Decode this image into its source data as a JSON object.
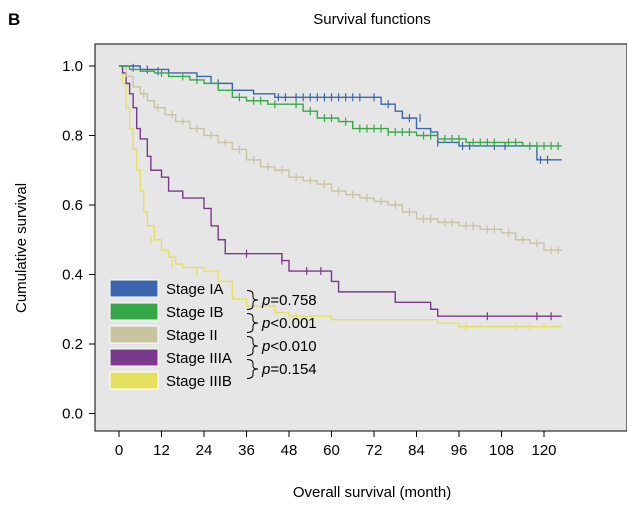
{
  "panel_label": "B",
  "chart_data": {
    "type": "line",
    "title": "Survival functions",
    "xlabel": "Overall survival (month)",
    "ylabel": "Cumulative survival",
    "xlim": [
      0,
      125
    ],
    "ylim": [
      -0.05,
      1.06
    ],
    "xticks": [
      0,
      12,
      24,
      36,
      48,
      60,
      72,
      84,
      96,
      108,
      120
    ],
    "yticks": [
      0.0,
      0.2,
      0.4,
      0.6,
      0.8,
      1.0
    ],
    "ytick_labels": [
      "0.0",
      "0.2",
      "0.4",
      "0.6",
      "0.8",
      "1.0"
    ],
    "plot_background": "#e6e6e6",
    "grid": false,
    "legend_position": "bottom-left",
    "series": [
      {
        "name": "Stage IA",
        "color": "#3a66b0",
        "step": [
          [
            0,
            1.0
          ],
          [
            6,
            0.99
          ],
          [
            14,
            0.98
          ],
          [
            22,
            0.97
          ],
          [
            26,
            0.95
          ],
          [
            32,
            0.93
          ],
          [
            38,
            0.92
          ],
          [
            44,
            0.91
          ],
          [
            58,
            0.91
          ],
          [
            70,
            0.91
          ],
          [
            74,
            0.89
          ],
          [
            78,
            0.87
          ],
          [
            80,
            0.85
          ],
          [
            84,
            0.82
          ],
          [
            88,
            0.81
          ],
          [
            90,
            0.78
          ],
          [
            96,
            0.77
          ],
          [
            108,
            0.77
          ],
          [
            118,
            0.73
          ],
          [
            125,
            0.73
          ]
        ],
        "censor_marks": [
          [
            4,
            0.995
          ],
          [
            8,
            0.99
          ],
          [
            11,
            0.985
          ],
          [
            28,
            0.95
          ],
          [
            45,
            0.91
          ],
          [
            47,
            0.91
          ],
          [
            50,
            0.91
          ],
          [
            52,
            0.91
          ],
          [
            54,
            0.91
          ],
          [
            56,
            0.91
          ],
          [
            58,
            0.91
          ],
          [
            60,
            0.91
          ],
          [
            62,
            0.91
          ],
          [
            64,
            0.91
          ],
          [
            66,
            0.91
          ],
          [
            68,
            0.91
          ],
          [
            72,
            0.91
          ],
          [
            76,
            0.89
          ],
          [
            82,
            0.85
          ],
          [
            85,
            0.85
          ],
          [
            90,
            0.78
          ],
          [
            97,
            0.77
          ],
          [
            99,
            0.77
          ],
          [
            106,
            0.77
          ],
          [
            109,
            0.77
          ],
          [
            119,
            0.73
          ],
          [
            121,
            0.73
          ]
        ]
      },
      {
        "name": "Stage IB",
        "color": "#35a84a",
        "step": [
          [
            0,
            1.0
          ],
          [
            3,
            0.99
          ],
          [
            6,
            0.985
          ],
          [
            10,
            0.98
          ],
          [
            14,
            0.97
          ],
          [
            20,
            0.96
          ],
          [
            24,
            0.95
          ],
          [
            28,
            0.93
          ],
          [
            32,
            0.91
          ],
          [
            36,
            0.9
          ],
          [
            42,
            0.89
          ],
          [
            48,
            0.89
          ],
          [
            52,
            0.87
          ],
          [
            56,
            0.85
          ],
          [
            62,
            0.84
          ],
          [
            66,
            0.82
          ],
          [
            70,
            0.82
          ],
          [
            76,
            0.81
          ],
          [
            84,
            0.8
          ],
          [
            90,
            0.79
          ],
          [
            98,
            0.78
          ],
          [
            108,
            0.78
          ],
          [
            114,
            0.77
          ],
          [
            125,
            0.77
          ]
        ],
        "censor_marks": [
          [
            12,
            0.98
          ],
          [
            18,
            0.97
          ],
          [
            22,
            0.96
          ],
          [
            34,
            0.91
          ],
          [
            38,
            0.9
          ],
          [
            40,
            0.9
          ],
          [
            44,
            0.89
          ],
          [
            50,
            0.89
          ],
          [
            54,
            0.87
          ],
          [
            58,
            0.85
          ],
          [
            60,
            0.85
          ],
          [
            64,
            0.84
          ],
          [
            68,
            0.82
          ],
          [
            70,
            0.82
          ],
          [
            72,
            0.82
          ],
          [
            74,
            0.82
          ],
          [
            76,
            0.81
          ],
          [
            78,
            0.81
          ],
          [
            80,
            0.81
          ],
          [
            82,
            0.81
          ],
          [
            86,
            0.8
          ],
          [
            88,
            0.8
          ],
          [
            92,
            0.79
          ],
          [
            94,
            0.79
          ],
          [
            96,
            0.79
          ],
          [
            100,
            0.78
          ],
          [
            102,
            0.78
          ],
          [
            104,
            0.78
          ],
          [
            106,
            0.78
          ],
          [
            110,
            0.78
          ],
          [
            112,
            0.78
          ],
          [
            116,
            0.77
          ],
          [
            118,
            0.77
          ],
          [
            120,
            0.77
          ],
          [
            122,
            0.77
          ],
          [
            124,
            0.77
          ]
        ]
      },
      {
        "name": "Stage II",
        "color": "#c8c3a0",
        "step": [
          [
            0,
            1.0
          ],
          [
            2,
            0.97
          ],
          [
            4,
            0.94
          ],
          [
            6,
            0.92
          ],
          [
            8,
            0.9
          ],
          [
            10,
            0.88
          ],
          [
            13,
            0.86
          ],
          [
            16,
            0.84
          ],
          [
            20,
            0.82
          ],
          [
            24,
            0.8
          ],
          [
            28,
            0.78
          ],
          [
            32,
            0.76
          ],
          [
            36,
            0.73
          ],
          [
            40,
            0.71
          ],
          [
            44,
            0.7
          ],
          [
            48,
            0.68
          ],
          [
            52,
            0.67
          ],
          [
            56,
            0.66
          ],
          [
            60,
            0.64
          ],
          [
            64,
            0.63
          ],
          [
            68,
            0.62
          ],
          [
            72,
            0.61
          ],
          [
            76,
            0.6
          ],
          [
            80,
            0.58
          ],
          [
            84,
            0.56
          ],
          [
            90,
            0.55
          ],
          [
            96,
            0.54
          ],
          [
            102,
            0.53
          ],
          [
            108,
            0.52
          ],
          [
            112,
            0.5
          ],
          [
            116,
            0.49
          ],
          [
            120,
            0.47
          ],
          [
            125,
            0.47
          ]
        ],
        "censor_marks": [
          [
            7,
            0.92
          ],
          [
            11,
            0.88
          ],
          [
            15,
            0.86
          ],
          [
            18,
            0.84
          ],
          [
            22,
            0.82
          ],
          [
            26,
            0.8
          ],
          [
            30,
            0.78
          ],
          [
            34,
            0.76
          ],
          [
            38,
            0.73
          ],
          [
            42,
            0.71
          ],
          [
            46,
            0.7
          ],
          [
            50,
            0.68
          ],
          [
            54,
            0.67
          ],
          [
            58,
            0.66
          ],
          [
            62,
            0.64
          ],
          [
            66,
            0.63
          ],
          [
            70,
            0.62
          ],
          [
            74,
            0.61
          ],
          [
            78,
            0.6
          ],
          [
            82,
            0.58
          ],
          [
            86,
            0.56
          ],
          [
            88,
            0.56
          ],
          [
            92,
            0.55
          ],
          [
            94,
            0.55
          ],
          [
            98,
            0.54
          ],
          [
            100,
            0.54
          ],
          [
            104,
            0.53
          ],
          [
            106,
            0.53
          ],
          [
            110,
            0.52
          ],
          [
            114,
            0.5
          ],
          [
            118,
            0.49
          ],
          [
            122,
            0.47
          ],
          [
            124,
            0.47
          ]
        ]
      },
      {
        "name": "Stage IIIA",
        "color": "#7a3a8c",
        "step": [
          [
            0,
            1.0
          ],
          [
            1,
            0.98
          ],
          [
            2,
            0.95
          ],
          [
            3,
            0.92
          ],
          [
            4,
            0.88
          ],
          [
            5,
            0.82
          ],
          [
            6,
            0.79
          ],
          [
            8,
            0.74
          ],
          [
            9,
            0.7
          ],
          [
            12,
            0.68
          ],
          [
            14,
            0.64
          ],
          [
            18,
            0.62
          ],
          [
            24,
            0.59
          ],
          [
            26,
            0.54
          ],
          [
            28,
            0.5
          ],
          [
            30,
            0.46
          ],
          [
            38,
            0.46
          ],
          [
            46,
            0.44
          ],
          [
            48,
            0.41
          ],
          [
            60,
            0.38
          ],
          [
            62,
            0.35
          ],
          [
            78,
            0.32
          ],
          [
            88,
            0.3
          ],
          [
            90,
            0.28
          ],
          [
            125,
            0.28
          ]
        ],
        "censor_marks": [
          [
            36,
            0.46
          ],
          [
            46,
            0.44
          ],
          [
            53,
            0.41
          ],
          [
            57,
            0.41
          ],
          [
            104,
            0.28
          ],
          [
            118,
            0.28
          ],
          [
            122,
            0.28
          ]
        ]
      },
      {
        "name": "Stage IIIB",
        "color": "#e6e060",
        "step": [
          [
            0,
            1.0
          ],
          [
            1,
            0.95
          ],
          [
            2,
            0.88
          ],
          [
            3,
            0.82
          ],
          [
            4,
            0.76
          ],
          [
            5,
            0.7
          ],
          [
            6,
            0.64
          ],
          [
            7,
            0.58
          ],
          [
            8,
            0.54
          ],
          [
            10,
            0.5
          ],
          [
            12,
            0.47
          ],
          [
            14,
            0.45
          ],
          [
            16,
            0.43
          ],
          [
            18,
            0.42
          ],
          [
            24,
            0.41
          ],
          [
            28,
            0.38
          ],
          [
            32,
            0.33
          ],
          [
            36,
            0.31
          ],
          [
            44,
            0.29
          ],
          [
            48,
            0.28
          ],
          [
            60,
            0.27
          ],
          [
            90,
            0.26
          ],
          [
            96,
            0.25
          ],
          [
            125,
            0.25
          ]
        ],
        "censor_marks": [
          [
            9,
            0.5
          ],
          [
            15,
            0.43
          ],
          [
            22,
            0.41
          ],
          [
            50,
            0.28
          ],
          [
            98,
            0.25
          ],
          [
            112,
            0.25
          ],
          [
            116,
            0.25
          ],
          [
            120,
            0.25
          ]
        ]
      }
    ],
    "annotations": [
      {
        "text": "p=0.758",
        "p": "p",
        "v": "=0.758",
        "between": [
          "Stage IA",
          "Stage IB"
        ]
      },
      {
        "text": "p<0.001",
        "p": "p",
        "v": "<0.001",
        "between": [
          "Stage IB",
          "Stage II"
        ]
      },
      {
        "text": "p<0.010",
        "p": "p",
        "v": "<0.010",
        "between": [
          "Stage II",
          "Stage IIIA"
        ]
      },
      {
        "text": "p=0.154",
        "p": "p",
        "v": "=0.154",
        "between": [
          "Stage IIIA",
          "Stage IIIB"
        ]
      }
    ]
  }
}
